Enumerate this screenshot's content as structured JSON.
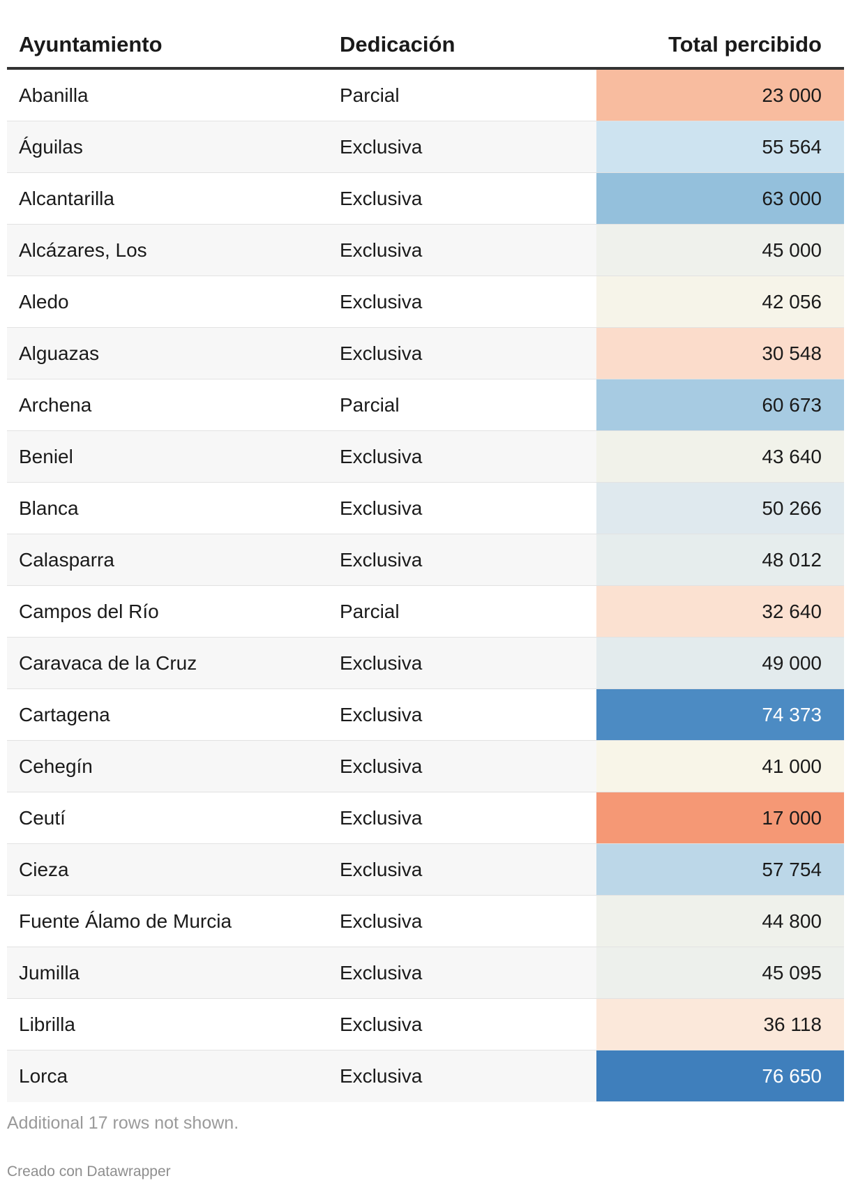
{
  "chart_data": {
    "type": "table",
    "columns": [
      "Ayuntamiento",
      "Dedicación",
      "Total percibido"
    ],
    "rows": [
      {
        "ayuntamiento": "Abanilla",
        "dedicacion": "Parcial",
        "total": "23 000",
        "value": 23000,
        "color": "#f8bc9f",
        "text_color": "#1a1a1a"
      },
      {
        "ayuntamiento": "Águilas",
        "dedicacion": "Exclusiva",
        "total": "55 564",
        "value": 55564,
        "color": "#cde3f0",
        "text_color": "#1a1a1a"
      },
      {
        "ayuntamiento": "Alcantarilla",
        "dedicacion": "Exclusiva",
        "total": "63 000",
        "value": 63000,
        "color": "#94c0dc",
        "text_color": "#1a1a1a"
      },
      {
        "ayuntamiento": "Alcázares, Los",
        "dedicacion": "Exclusiva",
        "total": "45 000",
        "value": 45000,
        "color": "#eff1ec",
        "text_color": "#1a1a1a"
      },
      {
        "ayuntamiento": "Aledo",
        "dedicacion": "Exclusiva",
        "total": "42 056",
        "value": 42056,
        "color": "#f6f4e9",
        "text_color": "#1a1a1a"
      },
      {
        "ayuntamiento": "Alguazas",
        "dedicacion": "Exclusiva",
        "total": "30 548",
        "value": 30548,
        "color": "#fbdccb",
        "text_color": "#1a1a1a"
      },
      {
        "ayuntamiento": "Archena",
        "dedicacion": "Parcial",
        "total": "60 673",
        "value": 60673,
        "color": "#a7cbe2",
        "text_color": "#1a1a1a"
      },
      {
        "ayuntamiento": "Beniel",
        "dedicacion": "Exclusiva",
        "total": "43 640",
        "value": 43640,
        "color": "#f1f2ea",
        "text_color": "#1a1a1a"
      },
      {
        "ayuntamiento": "Blanca",
        "dedicacion": "Exclusiva",
        "total": "50 266",
        "value": 50266,
        "color": "#dfe9ee",
        "text_color": "#1a1a1a"
      },
      {
        "ayuntamiento": "Calasparra",
        "dedicacion": "Exclusiva",
        "total": "48 012",
        "value": 48012,
        "color": "#e6eded",
        "text_color": "#1a1a1a"
      },
      {
        "ayuntamiento": "Campos del Río",
        "dedicacion": "Parcial",
        "total": "32 640",
        "value": 32640,
        "color": "#fbe1d1",
        "text_color": "#1a1a1a"
      },
      {
        "ayuntamiento": "Caravaca de la Cruz",
        "dedicacion": "Exclusiva",
        "total": "49 000",
        "value": 49000,
        "color": "#e3ebed",
        "text_color": "#1a1a1a"
      },
      {
        "ayuntamiento": "Cartagena",
        "dedicacion": "Exclusiva",
        "total": "74 373",
        "value": 74373,
        "color": "#4c8bc3",
        "text_color": "#ffffff"
      },
      {
        "ayuntamiento": "Cehegín",
        "dedicacion": "Exclusiva",
        "total": "41 000",
        "value": 41000,
        "color": "#f8f5e8",
        "text_color": "#1a1a1a"
      },
      {
        "ayuntamiento": "Ceutí",
        "dedicacion": "Exclusiva",
        "total": "17 000",
        "value": 17000,
        "color": "#f59875",
        "text_color": "#1a1a1a"
      },
      {
        "ayuntamiento": "Cieza",
        "dedicacion": "Exclusiva",
        "total": "57 754",
        "value": 57754,
        "color": "#bcd7e8",
        "text_color": "#1a1a1a"
      },
      {
        "ayuntamiento": "Fuente Álamo de Murcia",
        "dedicacion": "Exclusiva",
        "total": "44 800",
        "value": 44800,
        "color": "#eff1eb",
        "text_color": "#1a1a1a"
      },
      {
        "ayuntamiento": "Jumilla",
        "dedicacion": "Exclusiva",
        "total": "45 095",
        "value": 45095,
        "color": "#edf0ec",
        "text_color": "#1a1a1a"
      },
      {
        "ayuntamiento": "Librilla",
        "dedicacion": "Exclusiva",
        "total": "36 118",
        "value": 36118,
        "color": "#fbe8da",
        "text_color": "#1a1a1a"
      },
      {
        "ayuntamiento": "Lorca",
        "dedicacion": "Exclusiva",
        "total": "76 650",
        "value": 76650,
        "color": "#3f7fbc",
        "text_color": "#ffffff"
      }
    ]
  },
  "footer": {
    "note": "Additional 17 rows not shown.",
    "credit": "Creado con Datawrapper"
  }
}
